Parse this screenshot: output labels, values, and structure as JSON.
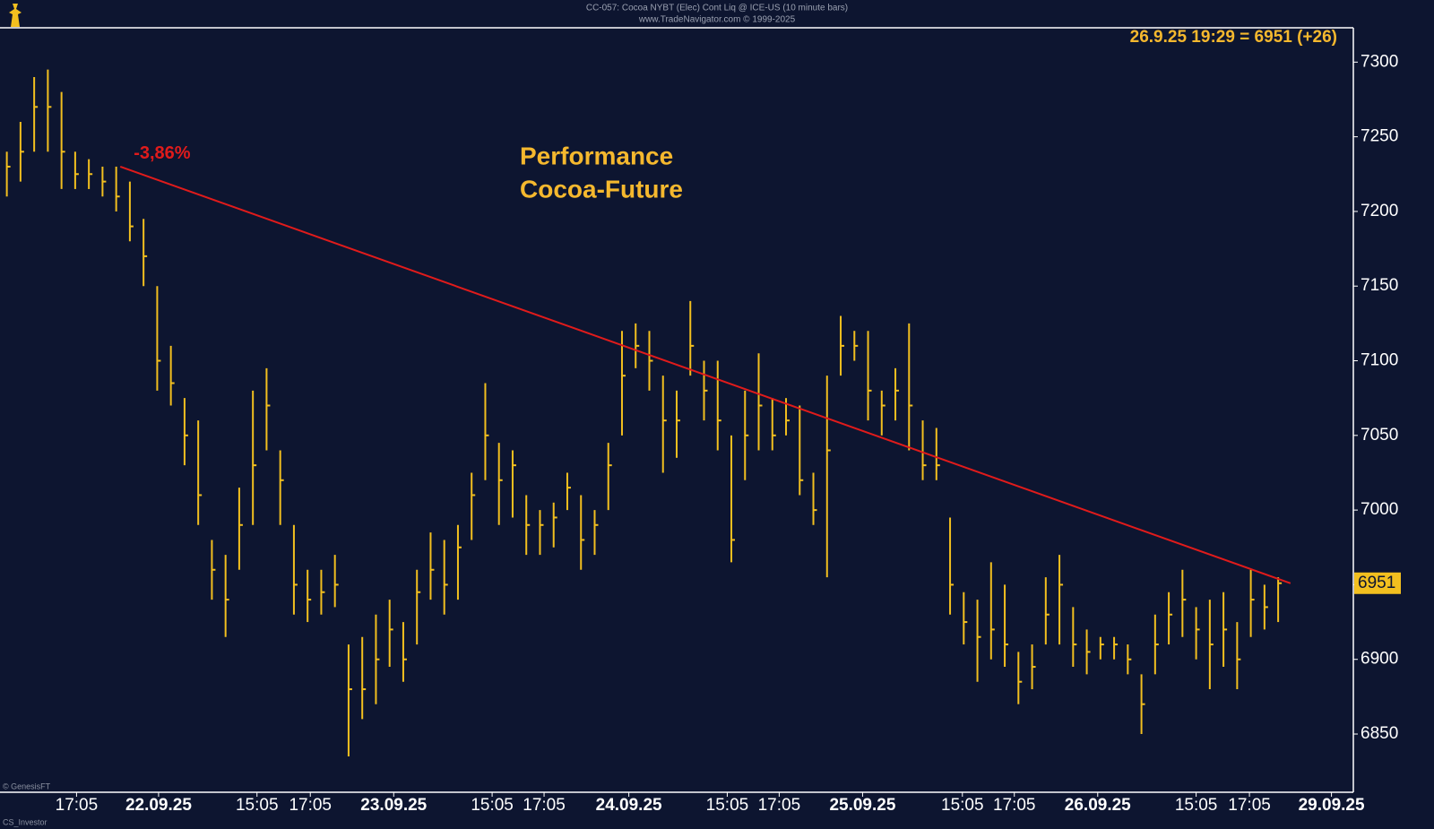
{
  "chart_data": {
    "type": "ohlc",
    "header": [
      "CC-057: Cocoa NYBT (Elec) Cont Liq @ ICE-US (10 minute bars)",
      "www.TradeNavigator.com © 1999-2025"
    ],
    "title": [
      "Performance",
      "Cocoa-Future"
    ],
    "last_quote": "26.9.25 19:29 = 6951 (+26)",
    "last_price": 6951,
    "footer": [
      "© GenesisFT",
      "CS_Investor"
    ],
    "color": "#f2bf1f",
    "ylim": [
      6811,
      7323
    ],
    "yticks": [
      6850,
      6900,
      6950,
      7000,
      7050,
      7100,
      7150,
      7200,
      7250,
      7300
    ],
    "xlim": [
      -0.5,
      98.5
    ],
    "xticks": [
      {
        "value": 5.1,
        "label": "17:05"
      },
      {
        "value": 11.1,
        "label": "22.09.25"
      },
      {
        "value": 18.3,
        "label": "15:05"
      },
      {
        "value": 22.2,
        "label": "17:05"
      },
      {
        "value": 28.3,
        "label": "23.09.25"
      },
      {
        "value": 35.5,
        "label": "15:05"
      },
      {
        "value": 39.3,
        "label": "17:05"
      },
      {
        "value": 45.5,
        "label": "24.09.25"
      },
      {
        "value": 52.7,
        "label": "15:05"
      },
      {
        "value": 56.5,
        "label": "17:05"
      },
      {
        "value": 62.6,
        "label": "25.09.25"
      },
      {
        "value": 69.9,
        "label": "15:05"
      },
      {
        "value": 73.7,
        "label": "17:05"
      },
      {
        "value": 79.8,
        "label": "26.09.25"
      },
      {
        "value": 87,
        "label": "15:05"
      },
      {
        "value": 90.9,
        "label": "17:05"
      },
      {
        "value": 96.9,
        "label": "29.09.25"
      }
    ],
    "high": [
      7240,
      7260,
      7290,
      7295,
      7280,
      7240,
      7235,
      7230,
      7230,
      7220,
      7195,
      7150,
      7110,
      7075,
      7060,
      6980,
      6970,
      7015,
      7080,
      7095,
      7040,
      6990,
      6960,
      6960,
      6970,
      6910,
      6915,
      6930,
      6940,
      6925,
      6960,
      6985,
      6980,
      6990,
      7025,
      7085,
      7045,
      7040,
      7010,
      7000,
      7005,
      7025,
      7010,
      7000,
      7045,
      7120,
      7125,
      7120,
      7090,
      7080,
      7140,
      7100,
      7100,
      7050,
      7080,
      7105,
      7075,
      7075,
      7070,
      7025,
      7090,
      7130,
      7120,
      7120,
      7080,
      7095,
      7125,
      7060,
      7055,
      6995,
      6945,
      6940,
      6965,
      6950,
      6905,
      6910,
      6955,
      6970,
      6935,
      6920,
      6915,
      6915,
      6910,
      6890,
      6930,
      6945,
      6960,
      6935,
      6940,
      6945,
      6925,
      6960,
      6950,
      6955
    ],
    "low": [
      7210,
      7220,
      7240,
      7240,
      7215,
      7215,
      7215,
      7210,
      7200,
      7180,
      7150,
      7080,
      7070,
      7030,
      6990,
      6940,
      6915,
      6960,
      6990,
      7040,
      6990,
      6930,
      6925,
      6930,
      6935,
      6835,
      6860,
      6870,
      6895,
      6885,
      6910,
      6940,
      6930,
      6940,
      6980,
      7020,
      6990,
      6995,
      6970,
      6970,
      6975,
      7000,
      6960,
      6970,
      7000,
      7050,
      7095,
      7080,
      7025,
      7035,
      7090,
      7060,
      7040,
      6965,
      7020,
      7040,
      7040,
      7050,
      7010,
      6990,
      6955,
      7090,
      7100,
      7060,
      7050,
      7060,
      7040,
      7020,
      7020,
      6930,
      6910,
      6885,
      6900,
      6895,
      6870,
      6880,
      6910,
      6910,
      6895,
      6890,
      6900,
      6900,
      6890,
      6850,
      6890,
      6910,
      6915,
      6900,
      6880,
      6895,
      6880,
      6915,
      6920,
      6925
    ],
    "close": [
      7230,
      7240,
      7270,
      7270,
      7240,
      7225,
      7225,
      7220,
      7210,
      7190,
      7170,
      7100,
      7085,
      7050,
      7010,
      6960,
      6940,
      6990,
      7030,
      7070,
      7020,
      6950,
      6940,
      6945,
      6950,
      6880,
      6880,
      6900,
      6920,
      6900,
      6945,
      6960,
      6950,
      6975,
      7010,
      7050,
      7020,
      7030,
      6990,
      6990,
      6995,
      7015,
      6980,
      6990,
      7030,
      7090,
      7110,
      7100,
      7060,
      7060,
      7110,
      7080,
      7060,
      6980,
      7050,
      7070,
      7050,
      7060,
      7020,
      7000,
      7040,
      7110,
      7110,
      7080,
      7070,
      7080,
      7070,
      7030,
      7030,
      6950,
      6925,
      6915,
      6920,
      6910,
      6885,
      6895,
      6930,
      6950,
      6910,
      6905,
      6910,
      6910,
      6900,
      6870,
      6910,
      6930,
      6940,
      6920,
      6910,
      6920,
      6900,
      6940,
      6935,
      6951
    ],
    "trendline": {
      "label": "-3,86%",
      "color": "#e01b1b",
      "x": [
        8.3,
        93.9
      ],
      "y": [
        7230,
        6951
      ]
    }
  }
}
